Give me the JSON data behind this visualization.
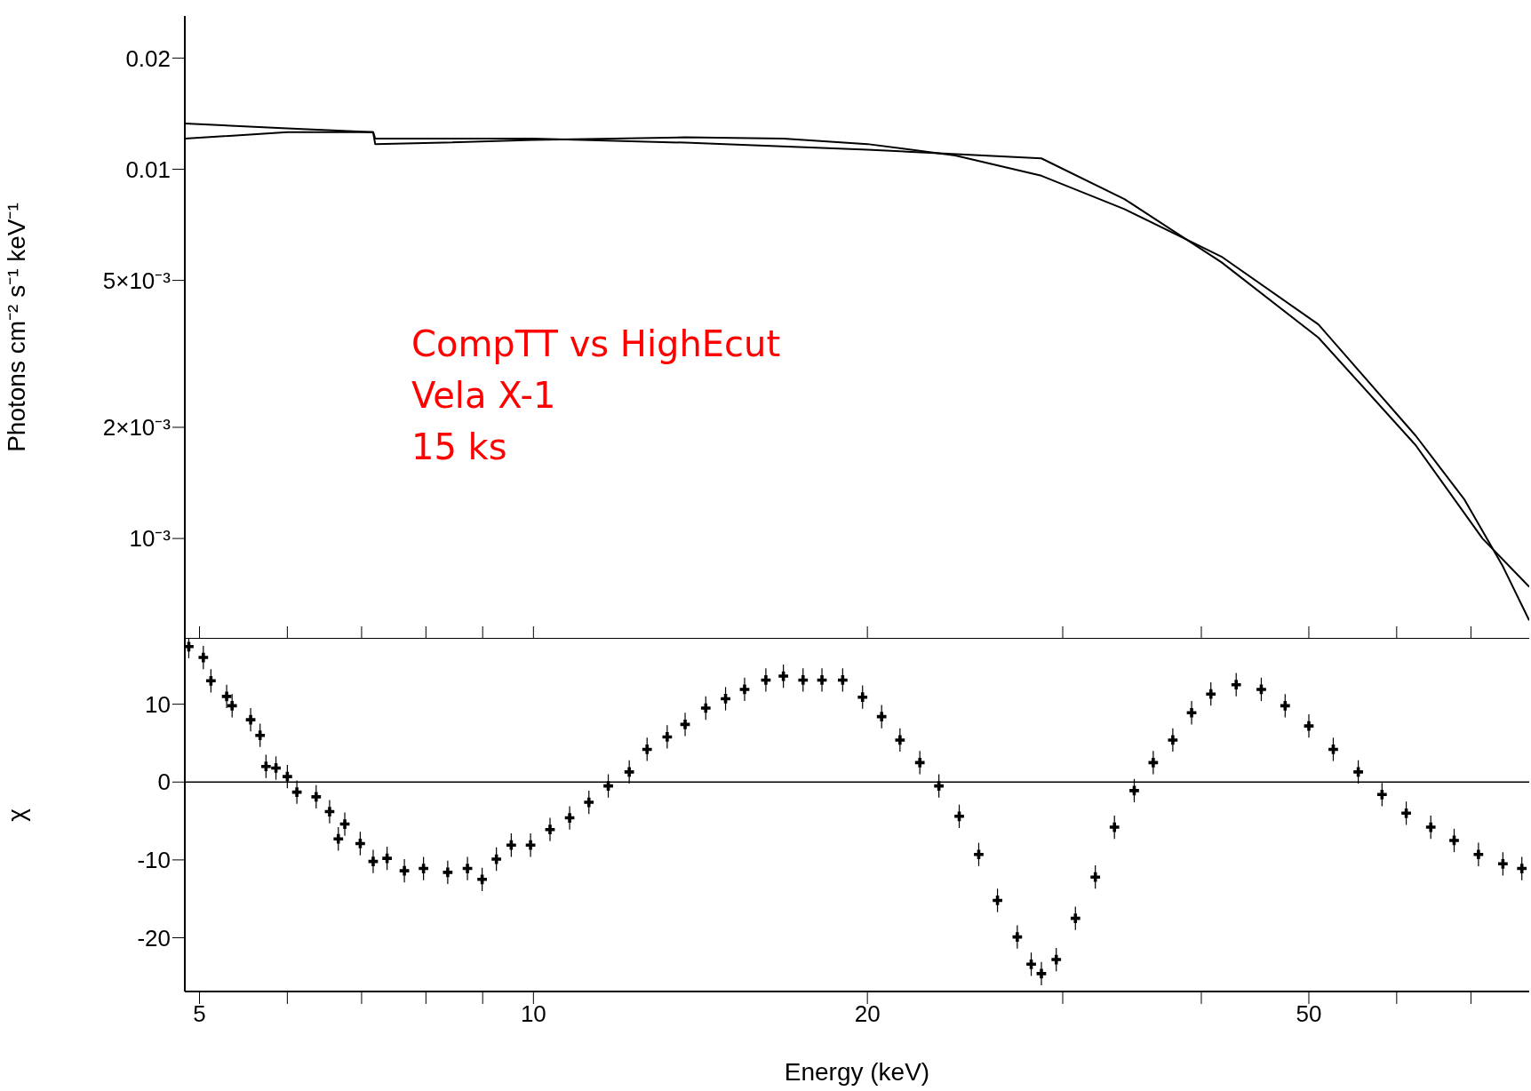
{
  "chart_data": [
    {
      "type": "line",
      "ylabel": "Photons cm⁻² s⁻¹ keV⁻¹",
      "log": "xy",
      "tick_labels": "y",
      "annotations": [
        "CompTT vs HighEcut",
        "Vela X-1",
        "15 ks"
      ],
      "xlim": [
        4.85,
        79
      ],
      "xticks": [
        5,
        {
          "value": 6,
          "label": null
        },
        {
          "value": 7,
          "label": null
        },
        {
          "value": 8,
          "label": null
        },
        {
          "value": 9,
          "label": null
        },
        10,
        20,
        {
          "value": 30,
          "label": null
        },
        {
          "value": 40,
          "label": null
        },
        50,
        {
          "value": 60,
          "label": null
        },
        {
          "value": 70,
          "label": null
        }
      ],
      "ylim": [
        0.000535,
        0.026
      ],
      "yticks": [
        {
          "value": 0.001,
          "label": "10⁻³"
        },
        {
          "value": 0.002,
          "label": "2×10⁻³"
        },
        {
          "value": 0.005,
          "label": "5×10⁻³"
        },
        0.01,
        0.02
      ],
      "series": [
        {
          "color": "#000000",
          "marker": "none",
          "line_style": "solid",
          "x": [
            4.85,
            6.0,
            7.17,
            7.2,
            8.3,
            10,
            13.7,
            16.8,
            20,
            24,
            28.7,
            34.1,
            41.7,
            51,
            62.4,
            69,
            74.8,
            79
          ],
          "values": [
            0.0133,
            0.0129,
            0.0126,
            0.0117,
            0.0118,
            0.012,
            0.0122,
            0.0121,
            0.0117,
            0.0109,
            0.0096,
            0.0078,
            0.0058,
            0.0038,
            0.0019,
            0.00128,
            0.00084,
            0.0006
          ]
        },
        {
          "color": "#000000",
          "marker": "none",
          "line_style": "solid",
          "x": [
            4.85,
            6.0,
            7.17,
            7.2,
            10,
            13.7,
            20,
            28.7,
            34.1,
            41.7,
            51,
            62.4,
            71.7,
            79
          ],
          "values": [
            0.0121,
            0.0126,
            0.0126,
            0.0121,
            0.0121,
            0.0118,
            0.0113,
            0.0107,
            0.0083,
            0.0056,
            0.0035,
            0.00179,
            0.001,
            0.00074
          ]
        }
      ]
    },
    {
      "type": "scatter",
      "xlabel": "Energy (keV)",
      "ylabel": "χ",
      "log": "x",
      "xlim": [
        4.85,
        79
      ],
      "xticks": [
        5,
        {
          "value": 6,
          "label": null
        },
        {
          "value": 7,
          "label": null
        },
        {
          "value": 8,
          "label": null
        },
        {
          "value": 9,
          "label": null
        },
        10,
        20,
        {
          "value": 30,
          "label": null
        },
        {
          "value": 40,
          "label": null
        },
        50,
        {
          "value": 60,
          "label": null
        },
        {
          "value": 70,
          "label": null
        }
      ],
      "ylim": [
        -26.9,
        18.4
      ],
      "yticks": [
        -20,
        -10,
        0,
        10
      ],
      "ref_lines": [
        {
          "axis": "y",
          "value": 0,
          "color": "#000000"
        }
      ],
      "series": [
        {
          "color": "#000000",
          "marker": "cross",
          "x": [
            4.89,
            5.04,
            5.12,
            5.29,
            5.35,
            5.56,
            5.67,
            5.74,
            5.86,
            6.0,
            6.12,
            6.37,
            6.55,
            6.67,
            6.76,
            6.98,
            7.17,
            7.38,
            7.65,
            7.96,
            8.37,
            8.72,
            8.99,
            9.26,
            9.55,
            9.94,
            10.35,
            10.78,
            11.22,
            11.68,
            12.2,
            12.66,
            13.2,
            13.7,
            14.3,
            14.9,
            15.5,
            16.2,
            16.8,
            17.5,
            18.2,
            19.0,
            19.8,
            20.6,
            21.4,
            22.3,
            23.2,
            24.2,
            25.2,
            26.2,
            27.3,
            28.1,
            28.7,
            29.6,
            30.8,
            32.1,
            33.4,
            34.8,
            36.2,
            37.7,
            39.2,
            40.8,
            43.0,
            45.3,
            47.6,
            50,
            52.6,
            55.4,
            58.2,
            61.2,
            64.4,
            67.6,
            71.1,
            74.8,
            77.8
          ],
          "values": [
            17.4,
            16,
            13,
            11,
            9.8,
            8,
            6,
            2,
            1.8,
            0.7,
            -1.3,
            -1.9,
            -3.8,
            -7.3,
            -5.4,
            -7.9,
            -10.2,
            -9.8,
            -11.4,
            -11.1,
            -11.6,
            -11.1,
            -12.5,
            -9.9,
            -8.1,
            -8.1,
            -6.1,
            -4.6,
            -2.6,
            -0.5,
            1.3,
            4.2,
            5.8,
            7.4,
            9.5,
            10.7,
            11.9,
            13.1,
            13.6,
            13.1,
            13.1,
            13.1,
            10.9,
            8.4,
            5.4,
            2.5,
            -0.5,
            -4.4,
            -9.3,
            -15.2,
            -19.9,
            -23.4,
            -24.6,
            -22.8,
            -17.5,
            -12.2,
            -5.8,
            -1.1,
            2.5,
            5.4,
            8.9,
            11.3,
            12.5,
            11.9,
            9.8,
            7.2,
            4.2,
            1.3,
            -1.6,
            -4,
            -5.8,
            -7.5,
            -9.3,
            -10.5,
            -11.1
          ],
          "errors": [
            1.5,
            1.5,
            1.5,
            1.5,
            1.5,
            1.5,
            1.5,
            1.5,
            1.5,
            1.5,
            1.5,
            1.5,
            1.5,
            1.5,
            1.5,
            1.5,
            1.5,
            1.5,
            1.5,
            1.5,
            1.5,
            1.5,
            1.5,
            1.5,
            1.5,
            1.5,
            1.5,
            1.5,
            1.5,
            1.5,
            1.5,
            1.5,
            1.5,
            1.5,
            1.5,
            1.5,
            1.5,
            1.5,
            1.5,
            1.5,
            1.5,
            1.5,
            1.5,
            1.5,
            1.5,
            1.5,
            1.5,
            1.5,
            1.5,
            1.5,
            1.5,
            1.5,
            1.5,
            1.5,
            1.5,
            1.5,
            1.5,
            1.5,
            1.5,
            1.5,
            1.5,
            1.5,
            1.5,
            1.5,
            1.5,
            1.5,
            1.5,
            1.5,
            1.5,
            1.5,
            1.5,
            1.5,
            1.5,
            1.5,
            1.5
          ]
        }
      ]
    }
  ]
}
